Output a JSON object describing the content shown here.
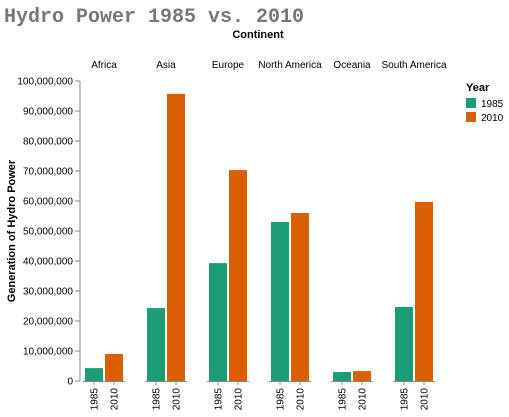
{
  "chart_data": {
    "type": "bar",
    "title": "Hydro Power 1985 vs. 2010",
    "column_title": "Continent",
    "y_label": "Generation of Hydro Power",
    "legend_title": "Year",
    "categories": [
      "Africa",
      "Asia",
      "Europe",
      "North America",
      "Oceania",
      "South America"
    ],
    "series": [
      {
        "name": "1985",
        "color": "#1b9e77",
        "values": [
          4300000,
          24300000,
          39300000,
          53000000,
          3000000,
          24700000
        ]
      },
      {
        "name": "2010",
        "color": "#d95f02",
        "values": [
          9000000,
          95700000,
          70300000,
          56000000,
          3300000,
          59700000
        ]
      }
    ],
    "ylim": [
      0,
      100000000
    ],
    "yticks": [
      0,
      {
        "value": 10000000,
        "label": "10,000,000"
      },
      {
        "value": 20000000,
        "label": "20,000,000"
      },
      {
        "value": 30000000,
        "label": "30,000,000"
      },
      {
        "value": 40000000,
        "label": "40,000,000"
      },
      {
        "value": 50000000,
        "label": "50,000,000"
      },
      {
        "value": 60000000,
        "label": "60,000,000"
      },
      {
        "value": 70000000,
        "label": "70,000,000"
      },
      {
        "value": 80000000,
        "label": "80,000,000"
      },
      {
        "value": 90000000,
        "label": "90,000,000"
      },
      {
        "value": 100000000,
        "label": "100,000,000"
      }
    ],
    "legend": "top-right"
  }
}
